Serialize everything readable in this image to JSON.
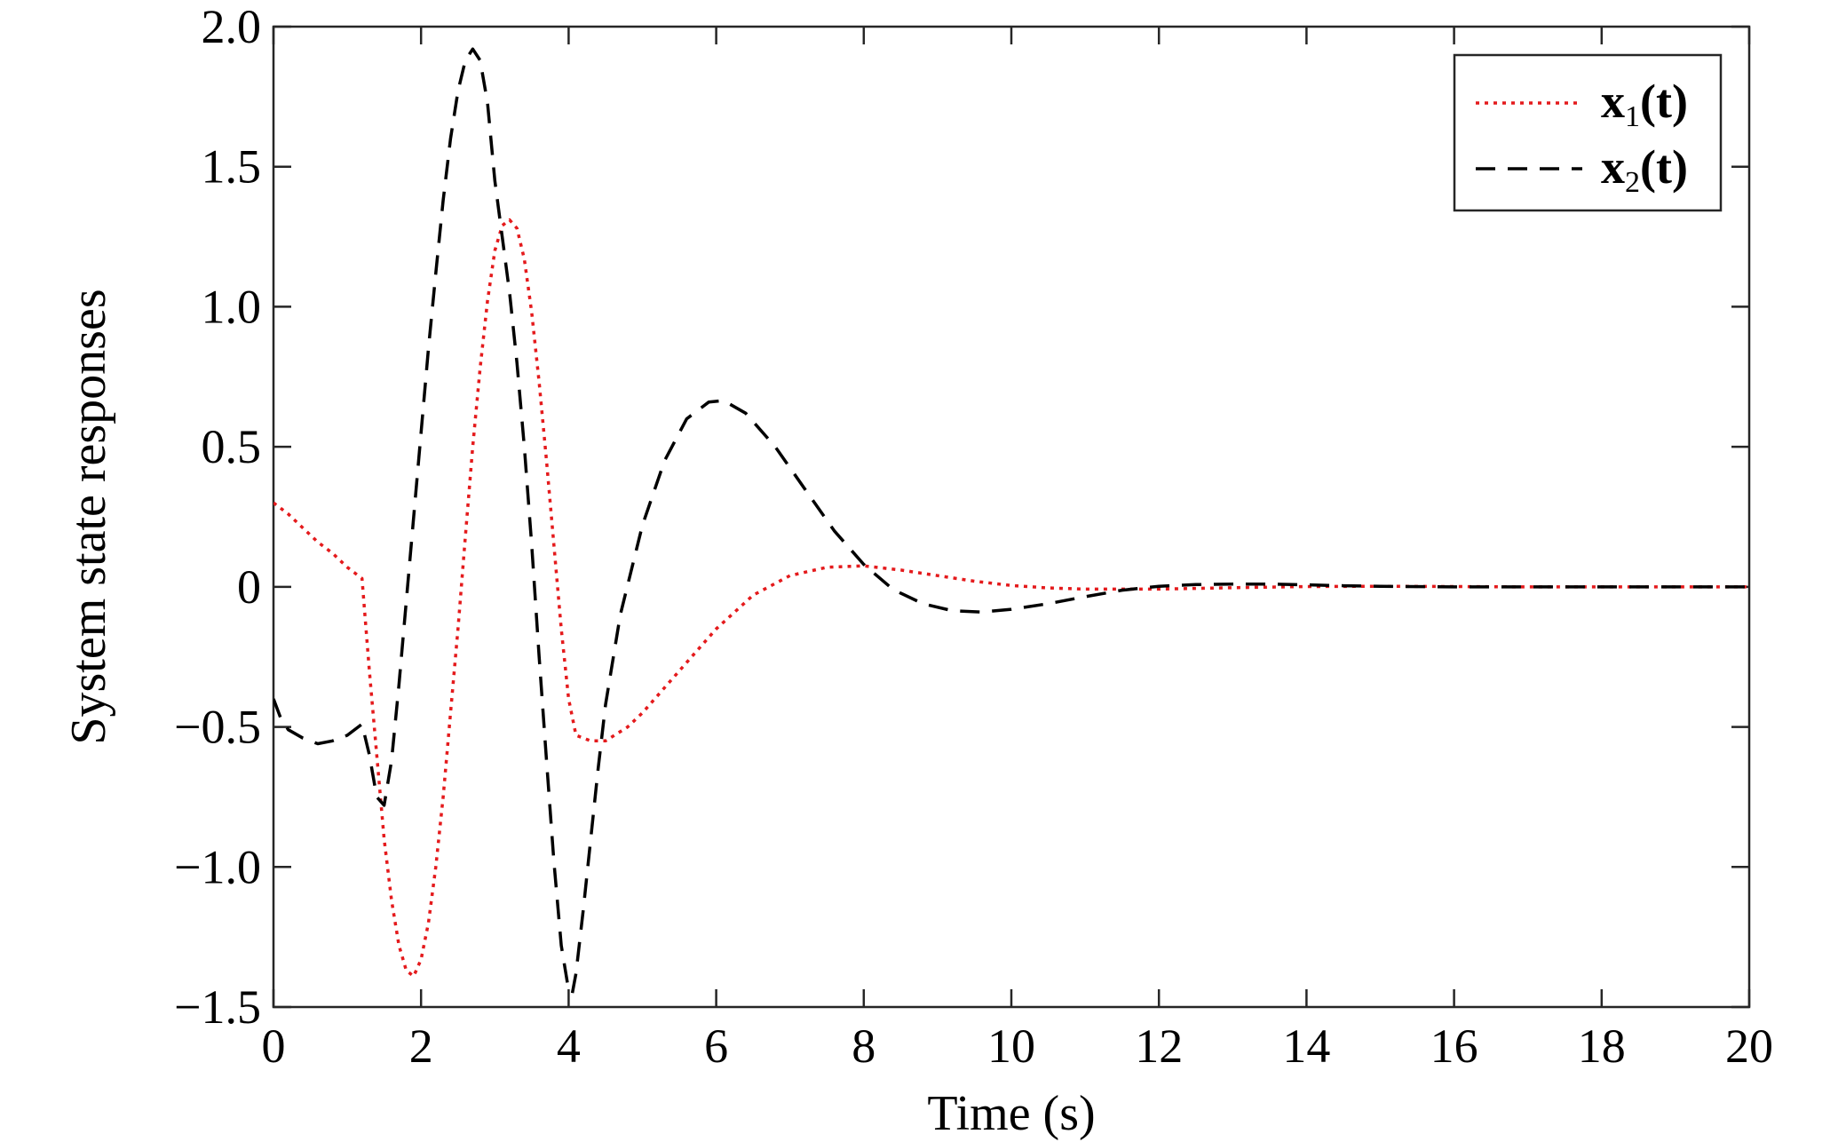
{
  "chart_data": {
    "type": "line",
    "title": "",
    "xlabel": "Time (s)",
    "ylabel": "System state responses",
    "xlim": [
      0,
      20
    ],
    "ylim": [
      -1.5,
      2.0
    ],
    "xticks": [
      0,
      2,
      4,
      6,
      8,
      10,
      12,
      14,
      16,
      18,
      20
    ],
    "xtick_labels": [
      "0",
      "2",
      "4",
      "6",
      "8",
      "10",
      "12",
      "14",
      "16",
      "18",
      "20"
    ],
    "yticks": [
      -1.5,
      -1.0,
      -0.5,
      0,
      0.5,
      1.0,
      1.5,
      2.0
    ],
    "ytick_labels": [
      "−1.5",
      "−1.0",
      "−0.5",
      "0",
      "0.5",
      "1.0",
      "1.5",
      "2.0"
    ],
    "grid": false,
    "legend_position": "top-right",
    "series": [
      {
        "name": "x1(t)",
        "legend_main": "x",
        "legend_sub": "1",
        "legend_tail": "(t)",
        "color": "#e41a1c",
        "style": "dotted",
        "points": [
          [
            0,
            0.3
          ],
          [
            0.2,
            0.26
          ],
          [
            0.4,
            0.21
          ],
          [
            0.6,
            0.16
          ],
          [
            0.8,
            0.12
          ],
          [
            1.0,
            0.07
          ],
          [
            1.2,
            0.03
          ],
          [
            1.3,
            -0.3
          ],
          [
            1.4,
            -0.6
          ],
          [
            1.5,
            -0.9
          ],
          [
            1.6,
            -1.12
          ],
          [
            1.7,
            -1.28
          ],
          [
            1.8,
            -1.37
          ],
          [
            1.9,
            -1.39
          ],
          [
            2.0,
            -1.33
          ],
          [
            2.1,
            -1.2
          ],
          [
            2.2,
            -1.0
          ],
          [
            2.3,
            -0.75
          ],
          [
            2.4,
            -0.45
          ],
          [
            2.5,
            -0.15
          ],
          [
            2.6,
            0.18
          ],
          [
            2.7,
            0.5
          ],
          [
            2.8,
            0.78
          ],
          [
            2.9,
            1.02
          ],
          [
            3.0,
            1.2
          ],
          [
            3.1,
            1.29
          ],
          [
            3.2,
            1.31
          ],
          [
            3.3,
            1.28
          ],
          [
            3.4,
            1.17
          ],
          [
            3.5,
            0.98
          ],
          [
            3.6,
            0.73
          ],
          [
            3.7,
            0.45
          ],
          [
            3.8,
            0.15
          ],
          [
            3.9,
            -0.15
          ],
          [
            4.0,
            -0.4
          ],
          [
            4.1,
            -0.53
          ],
          [
            4.3,
            -0.55
          ],
          [
            4.5,
            -0.55
          ],
          [
            4.8,
            -0.5
          ],
          [
            5.0,
            -0.45
          ],
          [
            5.5,
            -0.3
          ],
          [
            6.0,
            -0.15
          ],
          [
            6.5,
            -0.03
          ],
          [
            7.0,
            0.04
          ],
          [
            7.5,
            0.07
          ],
          [
            8.0,
            0.075
          ],
          [
            8.5,
            0.06
          ],
          [
            9.0,
            0.04
          ],
          [
            9.5,
            0.02
          ],
          [
            10.0,
            0.005
          ],
          [
            10.5,
            -0.004
          ],
          [
            11.0,
            -0.008
          ],
          [
            12.0,
            -0.008
          ],
          [
            13.0,
            -0.003
          ],
          [
            14.0,
            0.001
          ],
          [
            15.0,
            0.002
          ],
          [
            16.0,
            0.001
          ],
          [
            17.0,
            0.0
          ],
          [
            20.0,
            0.0
          ]
        ]
      },
      {
        "name": "x2(t)",
        "legend_main": "x",
        "legend_sub": "2",
        "legend_tail": "(t)",
        "color": "#000000",
        "style": "dashed",
        "points": [
          [
            0,
            -0.4
          ],
          [
            0.1,
            -0.47
          ],
          [
            0.2,
            -0.51
          ],
          [
            0.4,
            -0.54
          ],
          [
            0.6,
            -0.56
          ],
          [
            0.8,
            -0.55
          ],
          [
            1.0,
            -0.53
          ],
          [
            1.2,
            -0.49
          ],
          [
            1.3,
            -0.6
          ],
          [
            1.4,
            -0.75
          ],
          [
            1.5,
            -0.78
          ],
          [
            1.6,
            -0.62
          ],
          [
            1.7,
            -0.35
          ],
          [
            1.8,
            -0.05
          ],
          [
            1.9,
            0.25
          ],
          [
            2.0,
            0.55
          ],
          [
            2.1,
            0.85
          ],
          [
            2.2,
            1.12
          ],
          [
            2.3,
            1.38
          ],
          [
            2.4,
            1.6
          ],
          [
            2.5,
            1.77
          ],
          [
            2.6,
            1.88
          ],
          [
            2.7,
            1.92
          ],
          [
            2.8,
            1.88
          ],
          [
            2.9,
            1.73
          ],
          [
            3.0,
            1.45
          ],
          [
            3.1,
            1.25
          ],
          [
            3.2,
            1.05
          ],
          [
            3.3,
            0.8
          ],
          [
            3.4,
            0.5
          ],
          [
            3.5,
            0.15
          ],
          [
            3.6,
            -0.25
          ],
          [
            3.7,
            -0.62
          ],
          [
            3.8,
            -0.98
          ],
          [
            3.9,
            -1.28
          ],
          [
            4.0,
            -1.44
          ],
          [
            4.05,
            -1.45
          ],
          [
            4.1,
            -1.38
          ],
          [
            4.2,
            -1.15
          ],
          [
            4.3,
            -0.9
          ],
          [
            4.4,
            -0.65
          ],
          [
            4.5,
            -0.42
          ],
          [
            4.7,
            -0.1
          ],
          [
            5.0,
            0.22
          ],
          [
            5.3,
            0.45
          ],
          [
            5.6,
            0.6
          ],
          [
            5.9,
            0.66
          ],
          [
            6.1,
            0.665
          ],
          [
            6.4,
            0.62
          ],
          [
            6.8,
            0.5
          ],
          [
            7.2,
            0.35
          ],
          [
            7.6,
            0.2
          ],
          [
            8.0,
            0.08
          ],
          [
            8.4,
            -0.01
          ],
          [
            8.8,
            -0.06
          ],
          [
            9.2,
            -0.085
          ],
          [
            9.6,
            -0.09
          ],
          [
            10.0,
            -0.08
          ],
          [
            10.5,
            -0.06
          ],
          [
            11.0,
            -0.035
          ],
          [
            11.5,
            -0.012
          ],
          [
            12.0,
            0.002
          ],
          [
            12.5,
            0.008
          ],
          [
            13.0,
            0.01
          ],
          [
            13.5,
            0.01
          ],
          [
            14.0,
            0.007
          ],
          [
            14.5,
            0.004
          ],
          [
            15.0,
            0.002
          ],
          [
            16.0,
            0.0
          ],
          [
            20.0,
            0.0
          ]
        ]
      }
    ]
  }
}
